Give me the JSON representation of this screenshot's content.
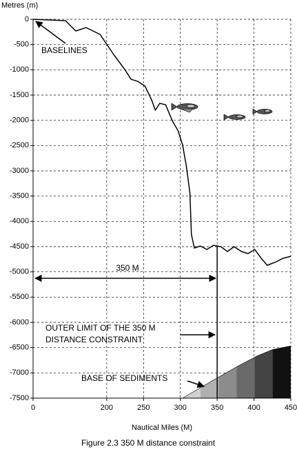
{
  "chart_data": {
    "type": "line",
    "y_label": "Metres (m)",
    "x_label": "Nautical Miles (M)",
    "caption": "Figure 2.3  350 M distance constraint",
    "xlim": [
      100,
      450
    ],
    "xticks": [
      {
        "value": 100,
        "label": "0"
      },
      200,
      250,
      300,
      350,
      400,
      450
    ],
    "ylim": [
      -7500,
      0
    ],
    "yticks": [
      0,
      -500,
      -1000,
      -1500,
      -2000,
      -2500,
      -3000,
      -3500,
      -4000,
      -4500,
      -5000,
      -5500,
      -6000,
      -6500,
      -7000,
      -7500
    ],
    "grid": true,
    "series": [
      {
        "color": "#000000",
        "x": [
          100,
          144,
          158,
          172,
          191,
          210,
          224,
          233,
          242,
          252,
          261,
          266,
          272,
          280,
          289,
          297,
          303,
          308,
          313,
          315,
          319,
          327,
          336,
          345,
          355,
          364,
          373,
          383,
          392,
          401,
          410,
          418,
          430,
          439,
          450
        ],
        "values": [
          0,
          -27,
          -232,
          -164,
          -300,
          -709,
          -982,
          -1187,
          -1228,
          -1323,
          -1596,
          -1800,
          -1664,
          -1692,
          -2005,
          -2210,
          -2483,
          -2892,
          -3438,
          -4256,
          -4529,
          -4488,
          -4556,
          -4474,
          -4502,
          -4597,
          -4502,
          -4597,
          -4638,
          -4556,
          -4734,
          -4870,
          -4802,
          -4734,
          -4693
        ]
      }
    ],
    "sediment": {
      "x": [
        303,
        350,
        380,
        405,
        425,
        450
      ],
      "values": [
        -7500,
        -7100,
        -6850,
        -6660,
        -6540,
        -6466
      ],
      "colors": [
        "#d0d0d0",
        "#b0b0b0",
        "#8c8c8c",
        "#6a6a6a",
        "#444444",
        "#111111"
      ]
    },
    "constraint_x": 350,
    "annotations": {
      "baselines": "BASELINES",
      "distance": "350 M",
      "outer_limit_1": "OUTER LIMIT OF THE 350 M",
      "outer_limit_2": "DISTANCE CONSTRAINT",
      "sediments": "BASE OF SEDIMENTS"
    }
  }
}
